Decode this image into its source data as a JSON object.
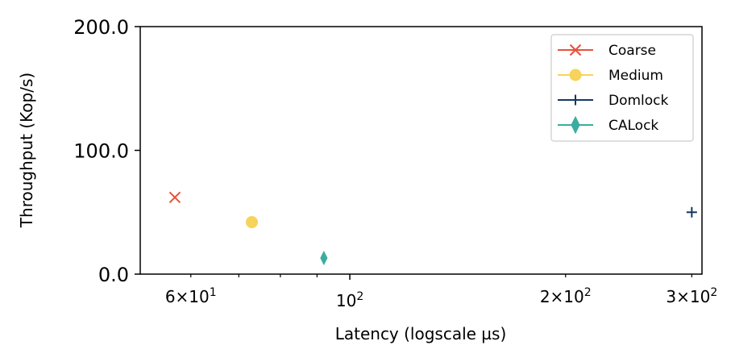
{
  "chart_data": {
    "type": "scatter",
    "xscale": "log",
    "xlim": [
      51,
      310
    ],
    "ylim": [
      0,
      200
    ],
    "xlabel": "Latency (logscale µs)",
    "ylabel": "Throughput (Kop/s)",
    "yticks": [
      {
        "value": 0,
        "label": "0.0"
      },
      {
        "value": 100,
        "label": "100.0"
      },
      {
        "value": 200,
        "label": "200.0"
      }
    ],
    "xticks_major": [
      {
        "value": 100,
        "base": "10",
        "exp": "2"
      }
    ],
    "xticks_labeled_minor": [
      {
        "value": 60,
        "coef": "6",
        "exp": "1"
      },
      {
        "value": 200,
        "coef": "2",
        "exp": "2"
      },
      {
        "value": 300,
        "coef": "3",
        "exp": "2"
      }
    ],
    "xticks_unlabeled_minor": [
      70,
      80,
      90
    ],
    "legend_position": "upper-right",
    "grid": false,
    "series": [
      {
        "name": "Coarse",
        "marker": "x",
        "color": "#e8513a",
        "points": [
          [
            57,
            62
          ]
        ]
      },
      {
        "name": "Medium",
        "marker": "circle",
        "color": "#f6d35b",
        "points": [
          [
            73,
            42
          ]
        ]
      },
      {
        "name": "Domlock",
        "marker": "plus",
        "color": "#17375e",
        "points": [
          [
            300,
            50
          ]
        ]
      },
      {
        "name": "CALock",
        "marker": "diamond",
        "color": "#3aada0",
        "points": [
          [
            92,
            13
          ]
        ]
      }
    ]
  }
}
